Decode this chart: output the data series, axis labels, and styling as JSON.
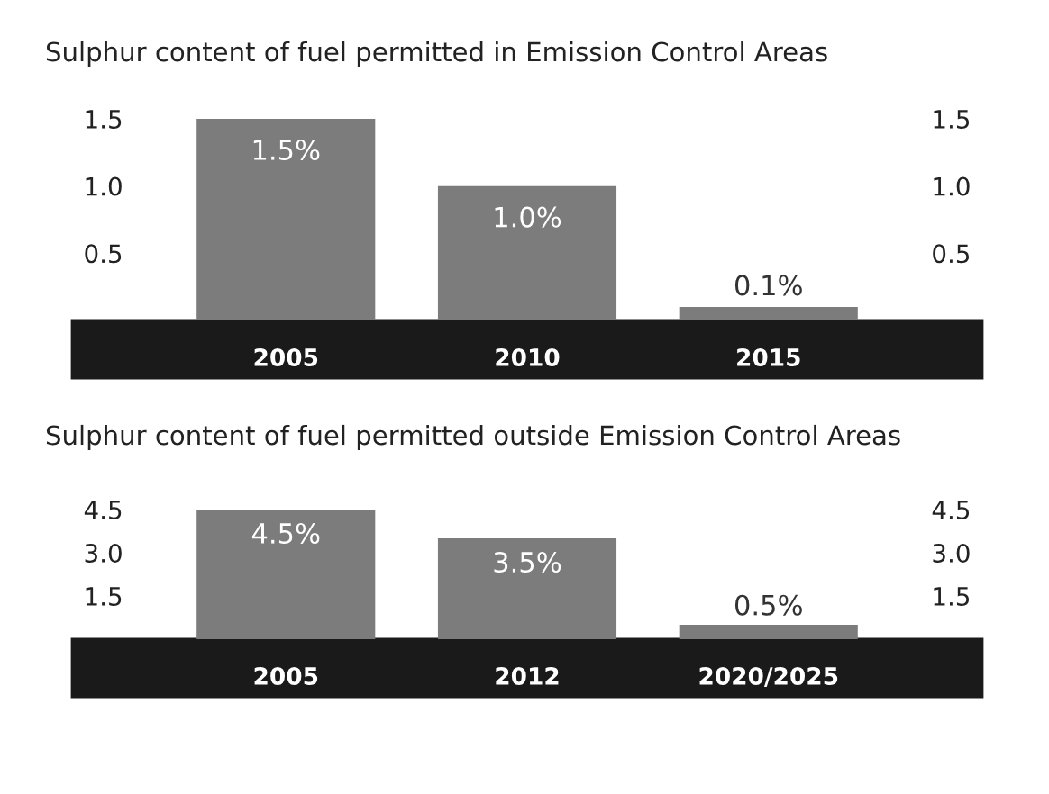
{
  "chart_data": [
    {
      "type": "bar",
      "title": "Sulphur content of fuel permitted in Emission Control Areas",
      "categories": [
        "2005",
        "2010",
        "2015"
      ],
      "values": [
        1.5,
        1.0,
        0.1
      ],
      "color": "#7c7c7c",
      "value_labels": [
        "1.5%",
        "1.0%",
        "0.1%"
      ],
      "ylim": [
        0,
        1.5
      ],
      "yticks": [
        0.5,
        {
          "value": 1,
          "label": "1.0"
        },
        1.5
      ],
      "y2lim": [
        0,
        1.5
      ],
      "y2ticks": [
        0.5,
        {
          "value": 1,
          "label": "1.0"
        },
        1.5
      ],
      "grid": false,
      "legend": false
    },
    {
      "type": "bar",
      "title": "Sulphur content of fuel permitted outside Emission Control Areas",
      "categories": [
        "2005",
        "2012",
        "2020/2025"
      ],
      "values": [
        4.5,
        3.5,
        0.5
      ],
      "color": "#7c7c7c",
      "value_labels": [
        "4.5%",
        "3.5%",
        "0.5%"
      ],
      "ylim": [
        0,
        4.5
      ],
      "yticks": [
        1.5,
        {
          "value": 3,
          "label": "3.0"
        },
        4.5
      ],
      "y2lim": [
        0,
        4.5
      ],
      "y2ticks": [
        1.5,
        {
          "value": 3,
          "label": "3.0"
        },
        4.5
      ],
      "grid": false,
      "legend": false
    }
  ]
}
